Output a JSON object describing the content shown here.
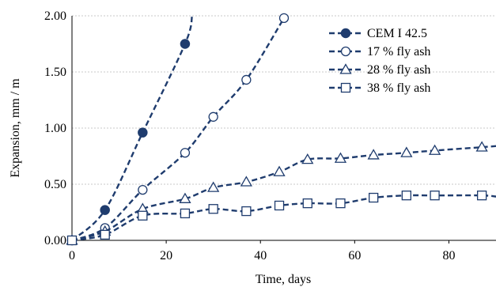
{
  "chart_data": {
    "type": "line",
    "xlabel": "Time, days",
    "ylabel": "Expansion, mm / m",
    "xlim": [
      0,
      90
    ],
    "ylim": [
      0,
      2.0
    ],
    "x_ticks": [
      "0",
      "20",
      "40",
      "60",
      "80"
    ],
    "y_ticks": [
      "0.00",
      "0.50",
      "1.00",
      "1.50",
      "2.00"
    ],
    "grid": "horizontal",
    "legend_position": "top-right",
    "series": [
      {
        "name": "CEM I 42.5",
        "marker": "filled-circle",
        "color": "#1f3c6e",
        "points": [
          [
            0,
            0
          ],
          [
            7,
            0.27
          ],
          [
            15,
            0.96
          ],
          [
            24,
            1.75
          ]
        ],
        "trend_end": [
          25.5,
          2.0
        ]
      },
      {
        "name": "17 % fly ash",
        "marker": "open-circle",
        "color": "#1f3c6e",
        "points": [
          [
            0,
            0
          ],
          [
            7,
            0.11
          ],
          [
            15,
            0.45
          ],
          [
            24,
            0.78
          ],
          [
            30,
            1.1
          ],
          [
            37,
            1.43
          ],
          [
            45,
            1.98
          ]
        ]
      },
      {
        "name": "28 % fly ash",
        "marker": "open-triangle",
        "color": "#1f3c6e",
        "points": [
          [
            0,
            0
          ],
          [
            7,
            0.08
          ],
          [
            15,
            0.28
          ],
          [
            24,
            0.37
          ],
          [
            30,
            0.47
          ],
          [
            37,
            0.52
          ],
          [
            44,
            0.61
          ],
          [
            50,
            0.72
          ],
          [
            57,
            0.73
          ],
          [
            64,
            0.76
          ],
          [
            71,
            0.78
          ],
          [
            77,
            0.8
          ],
          [
            87,
            0.83
          ]
        ],
        "trend_end": [
          90,
          0.84
        ]
      },
      {
        "name": "38 % fly ash",
        "marker": "open-square",
        "color": "#1f3c6e",
        "points": [
          [
            0,
            0
          ],
          [
            7,
            0.05
          ],
          [
            15,
            0.22
          ],
          [
            24,
            0.24
          ],
          [
            30,
            0.28
          ],
          [
            37,
            0.26
          ],
          [
            44,
            0.31
          ],
          [
            50,
            0.33
          ],
          [
            57,
            0.33
          ],
          [
            64,
            0.38
          ],
          [
            71,
            0.4
          ],
          [
            77,
            0.4
          ],
          [
            87,
            0.4
          ]
        ],
        "trend_end": [
          90,
          0.39
        ]
      }
    ]
  }
}
